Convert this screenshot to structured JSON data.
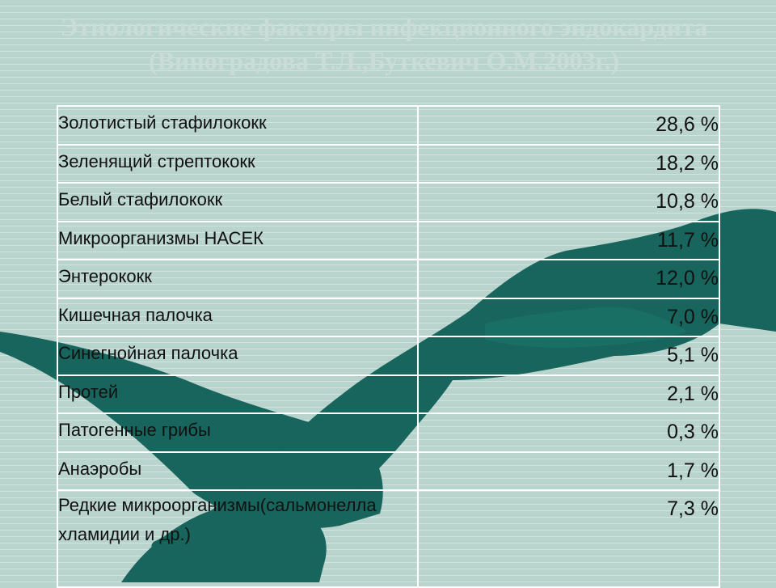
{
  "slide": {
    "title": "Этиологические факторы инфекционного эндокардита (Виноградова Т.Л.,Буткевич О.М.2003г.)"
  },
  "rows": [
    {
      "name": "Золотистый стафилококк",
      "value": "28,6 %"
    },
    {
      "name": "Зеленящий стрептококк",
      "value": "18,2 %"
    },
    {
      "name": "Белый стафилококк",
      "value": "10,8 %"
    },
    {
      "name": "Микроорганизмы НАСЕК",
      "value": "11,7 %"
    },
    {
      "name": "Энтерококк",
      "value": "12,0 %"
    },
    {
      "name": "Кишечная палочка",
      "value": "7,0 %"
    },
    {
      "name": "Синегнойная палочка",
      "value": "5,1 %"
    },
    {
      "name": "Протей",
      "value": "2,1 %"
    },
    {
      "name": "Патогенные грибы",
      "value": "0,3 %"
    },
    {
      "name": "Анаэробы",
      "value": "1,7 %"
    },
    {
      "name": "Редкие микроорганизмы(сальмонелла хламидии и др.)",
      "value": "7,3 %"
    }
  ],
  "colors": {
    "background": "#b9d3cd",
    "hands": "#17655c",
    "grid": "#ffffff"
  },
  "decoration": "clasped-hands-silhouette"
}
